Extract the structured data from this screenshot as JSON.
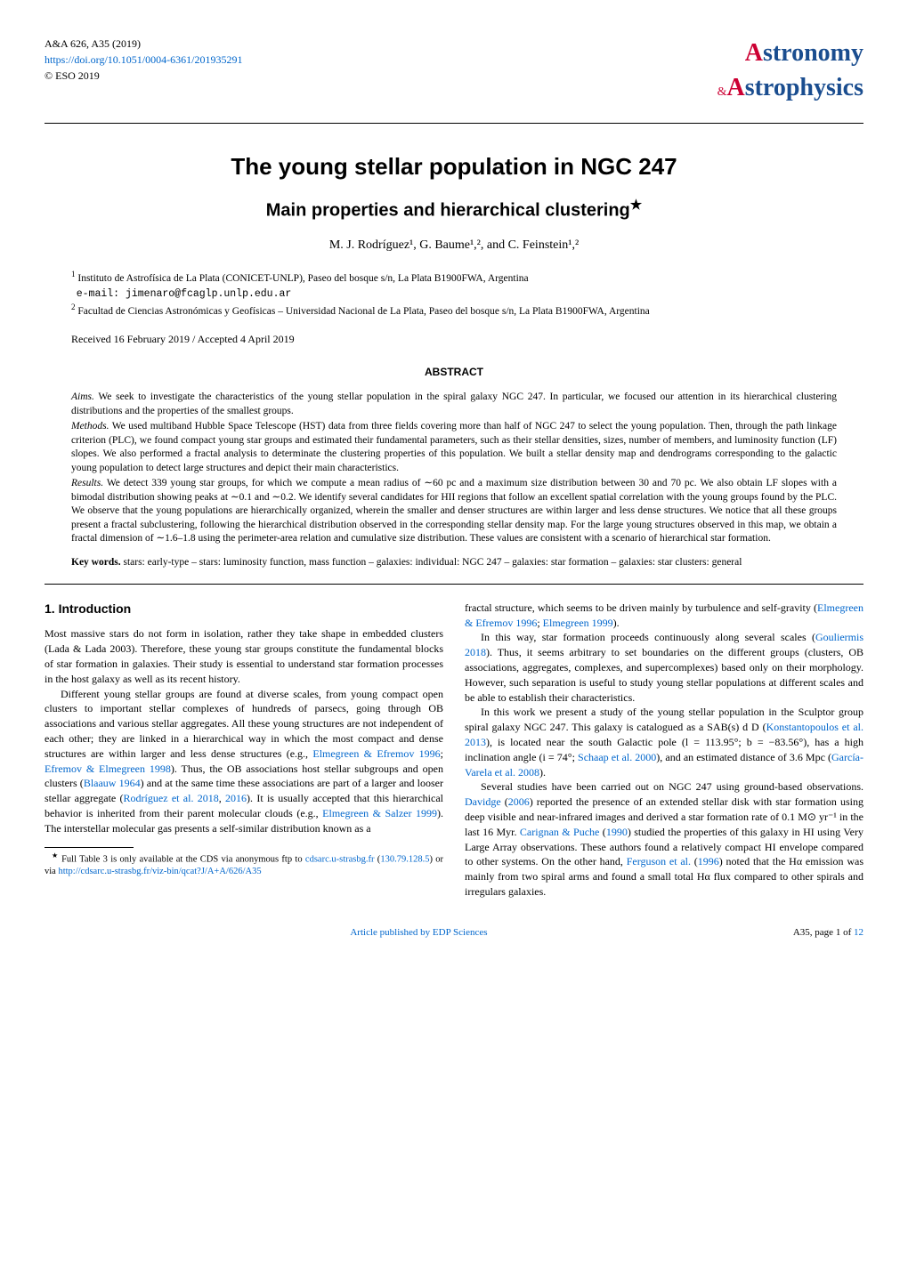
{
  "journal": {
    "citation": "A&A 626, A35 (2019)",
    "doi_url": "https://doi.org/10.1051/0004-6361/201935291",
    "copyright": "© ESO 2019"
  },
  "logo": {
    "line1_a": "A",
    "line1_rest": "stronomy",
    "amp": "&",
    "line2_a": "A",
    "line2_rest": "strophysics"
  },
  "title": "The young stellar population in NGC 247",
  "subtitle": "Main properties and hierarchical clustering",
  "subtitle_star": "★",
  "authors": "M. J. Rodríguez¹, G. Baume¹,², and C. Feinstein¹,²",
  "affiliations": [
    {
      "num": "1",
      "text": "Instituto de Astrofísica de La Plata (CONICET-UNLP), Paseo del bosque s/n, La Plata B1900FWA, Argentina",
      "email": "e-mail: jimenaro@fcaglp.unlp.edu.ar"
    },
    {
      "num": "2",
      "text": "Facultad de Ciencias Astronómicas y Geofísicas – Universidad Nacional de La Plata, Paseo del bosque s/n, La Plata B1900FWA, Argentina",
      "email": ""
    }
  ],
  "dates": "Received 16 February 2019 / Accepted 4 April 2019",
  "abstract_heading": "ABSTRACT",
  "abstract": {
    "aims_label": "Aims.",
    "aims": "We seek to investigate the characteristics of the young stellar population in the spiral galaxy NGC 247. In particular, we focused our attention in its hierarchical clustering distributions and the properties of the smallest groups.",
    "methods_label": "Methods.",
    "methods": "We used multiband Hubble Space Telescope (HST) data from three fields covering more than half of NGC 247 to select the young population. Then, through the path linkage criterion (PLC), we found compact young star groups and estimated their fundamental parameters, such as their stellar densities, sizes, number of members, and luminosity function (LF) slopes. We also performed a fractal analysis to determinate the clustering properties of this population. We built a stellar density map and dendrograms corresponding to the galactic young population to detect large structures and depict their main characteristics.",
    "results_label": "Results.",
    "results": "We detect 339 young star groups, for which we compute a mean radius of ∼60 pc and a maximum size distribution between 30 and 70 pc. We also obtain LF slopes with a bimodal distribution showing peaks at ∼0.1 and ∼0.2. We identify several candidates for HII regions that follow an excellent spatial correlation with the young groups found by the PLC. We observe that the young populations are hierarchically organized, wherein the smaller and denser structures are within larger and less dense structures. We notice that all these groups present a fractal subclustering, following the hierarchical distribution observed in the corresponding stellar density map. For the large young structures observed in this map, we obtain a fractal dimension of ∼1.6–1.8 using the perimeter-area relation and cumulative size distribution. These values are consistent with a scenario of hierarchical star formation."
  },
  "keywords_label": "Key words.",
  "keywords": "stars: early-type – stars: luminosity function, mass function – galaxies: individual: NGC 247 – galaxies: star formation – galaxies: star clusters: general",
  "section1_heading": "1. Introduction",
  "col_left": {
    "p1": "Most massive stars do not form in isolation, rather they take shape in embedded clusters (Lada & Lada 2003). Therefore, these young star groups constitute the fundamental blocks of star formation in galaxies. Their study is essential to understand star formation processes in the host galaxy as well as its recent history.",
    "p2a": "Different young stellar groups are found at diverse scales, from young compact open clusters to important stellar complexes of hundreds of parsecs, going through OB associations and various stellar aggregates. All these young structures are not independent of each other; they are linked in a hierarchical way in which the most compact and dense structures are within larger and less dense structures (e.g., ",
    "p2_link1": "Elmegreen & Efremov 1996",
    "p2b": "; ",
    "p2_link2": "Efremov & Elmegreen 1998",
    "p2c": "). Thus, the OB associations host stellar subgroups and open clusters (",
    "p2_link3": "Blaauw 1964",
    "p2d": ") and at the same time these associations are part of a larger and looser stellar aggregate (",
    "p2_link4": "Rodríguez et al. 2018",
    "p2e": ", ",
    "p2_link5": "2016",
    "p2f": "). It is usually accepted that this hierarchical behavior is inherited from their parent molecular clouds (e.g., ",
    "p2_link6": "Elmegreen & Salzer 1999",
    "p2g": "). The interstellar molecular gas presents a self-similar distribution known as a"
  },
  "footnote": {
    "star": "★",
    "text_a": " Full Table 3 is only available at the CDS via anonymous ftp to ",
    "link1": "cdsarc.u-strasbg.fr",
    "text_b": " (",
    "link2": "130.79.128.5",
    "text_c": ") or via ",
    "link3": "http://cdsarc.u-strasbg.fr/viz-bin/qcat?J/A+A/626/A35"
  },
  "col_right": {
    "p1a": "fractal structure, which seems to be driven mainly by turbulence and self-gravity (",
    "p1_link1": "Elmegreen & Efremov 1996",
    "p1b": "; ",
    "p1_link2": "Elmegreen 1999",
    "p1c": ").",
    "p2a": "In this way, star formation proceeds continuously along several scales (",
    "p2_link1": "Gouliermis 2018",
    "p2b": "). Thus, it seems arbitrary to set boundaries on the different groups (clusters, OB associations, aggregates, complexes, and supercomplexes) based only on their morphology. However, such separation is useful to study young stellar populations at different scales and be able to establish their characteristics.",
    "p3a": "In this work we present a study of the young stellar population in the Sculptor group spiral galaxy NGC 247. This galaxy is catalogued as a SAB(s) d D (",
    "p3_link1": "Konstantopoulos et al. 2013",
    "p3b": "), is located near the south Galactic pole (l = 113.95°; b = −83.56°), has a high inclination angle (i = 74°; ",
    "p3_link2": "Schaap et al. 2000",
    "p3c": "), and an estimated distance of 3.6 Mpc (",
    "p3_link3": "García-Varela et al. 2008",
    "p3d": ").",
    "p4a": "Several studies have been carried out on NGC 247 using ground-based observations. ",
    "p4_link1": "Davidge",
    "p4b": " (",
    "p4_link2": "2006",
    "p4c": ") reported the presence of an extended stellar disk with star formation using deep visible and near-infrared images and derived a star formation rate of 0.1 M⊙ yr⁻¹ in the last 16 Myr. ",
    "p4_link3": "Carignan & Puche",
    "p4d": " (",
    "p4_link4": "1990",
    "p4e": ") studied the properties of this galaxy in HI using Very Large Array observations. These authors found a relatively compact HI envelope compared to other systems. On the other hand, ",
    "p4_link5": "Ferguson et al.",
    "p4f": " (",
    "p4_link6": "1996",
    "p4g": ") noted that the Hα emission was mainly from two spiral arms and found a small total Hα flux compared to other spirals and irregulars galaxies."
  },
  "footer": {
    "center": "Article published by EDP Sciences",
    "right": "A35, page 1 of ",
    "right_link": "12"
  }
}
